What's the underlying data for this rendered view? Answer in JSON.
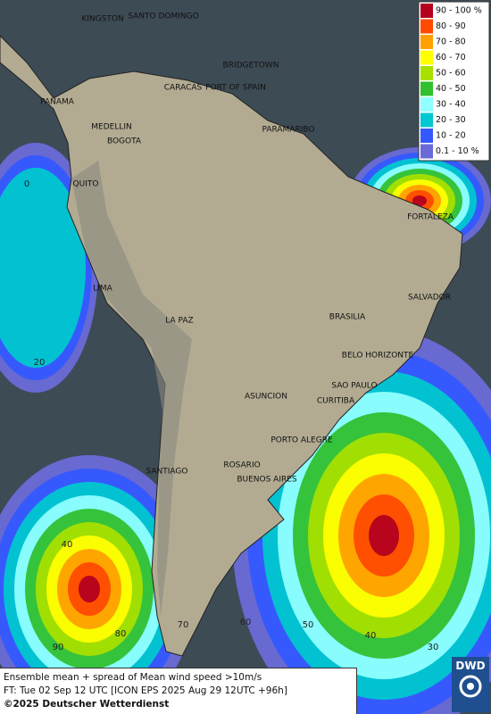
{
  "legend": {
    "entries": [
      {
        "label": "90 - 100 %",
        "color": "#b4001e"
      },
      {
        "label": "80 - 90",
        "color": "#ff4a00"
      },
      {
        "label": "70 - 80",
        "color": "#ffa000"
      },
      {
        "label": "60 - 70",
        "color": "#ffff00"
      },
      {
        "label": "50 - 60",
        "color": "#a8e000"
      },
      {
        "label": "40 - 50",
        "color": "#30c030"
      },
      {
        "label": "30 - 40",
        "color": "#90ffff"
      },
      {
        "label": "20 - 30",
        "color": "#00c8d0"
      },
      {
        "label": "10 - 20",
        "color": "#3458ff"
      },
      {
        "label": "0.1 - 10 %",
        "color": "#6a6ad8"
      }
    ]
  },
  "map": {
    "cities": [
      "KINGSTON",
      "SANTO DOMINGO",
      "BRIDGETOWN",
      "CARACAS",
      "PORT OF SPAIN",
      "PANAMA",
      "MEDELLIN",
      "BOGOTA",
      "PARAMARIBO",
      "QUITO",
      "FORTALEZA",
      "LIMA",
      "SALVADOR",
      "BRASILIA",
      "LA PAZ",
      "BELO HORIZONTE",
      "SAO PAULO",
      "CURITIBA",
      "ASUNCION",
      "PORTO ALEGRE",
      "SANTIAGO",
      "ROSARIO",
      "BUENOS AIRES"
    ],
    "grid_labels": [
      "0",
      "20",
      "40",
      "90",
      "80",
      "70",
      "60",
      "50",
      "40",
      "30"
    ]
  },
  "footer": {
    "line1": "Ensemble mean + spread of Mean wind speed >10m/s",
    "line2": "FT: Tue 02 Sep 12 UTC [ICON EPS 2025 Aug 29 12UTC +96h]",
    "line3": "©2025 Deutscher Wetterdienst"
  },
  "logo": "DWD"
}
